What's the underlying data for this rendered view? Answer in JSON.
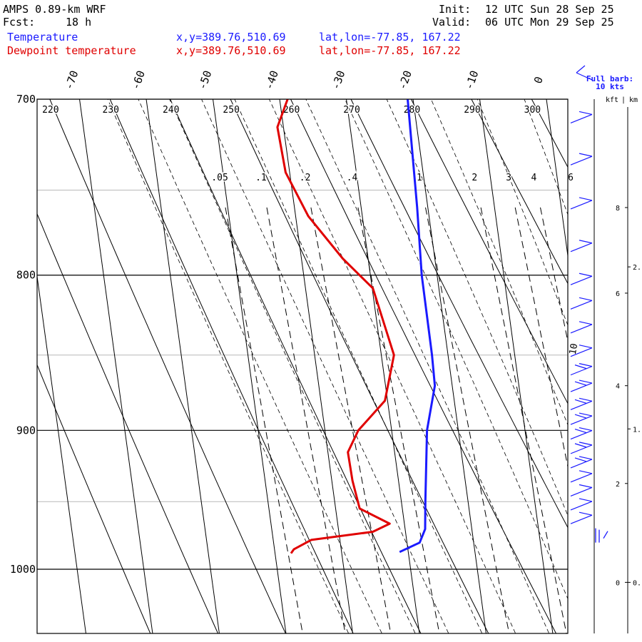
{
  "header": {
    "model": "AMPS 0.89-km WRF",
    "fcst_label": "Fcst:",
    "fcst_hours": "18 h",
    "init_label": "Init:",
    "init_time": "12 UTC Sun 28 Sep 25",
    "valid_label": "Valid:",
    "valid_time": "06 UTC Mon 29 Sep 25"
  },
  "legend": [
    {
      "name": "Temperature",
      "xy": "x,y=389.76,510.69",
      "latlon": "lat,lon=-77.85, 167.22",
      "color": "#1a1aff"
    },
    {
      "name": "Dewpoint temperature",
      "xy": "x,y=389.76,510.69",
      "latlon": "lat,lon=-77.85, 167.22",
      "color": "#e00000"
    }
  ],
  "barb_legend": {
    "line1": "Full barb:",
    "line2": "10 kts"
  },
  "height_axis": {
    "kft_label": "kft",
    "km_label": "km"
  },
  "chart_data": {
    "type": "line",
    "subtype": "skew-T log-p",
    "pressure_levels": [
      700,
      800,
      900,
      1000
    ],
    "p_range": [
      700,
      1040
    ],
    "skew_temp_labels": [
      "-70",
      "-60",
      "-50",
      "-40",
      "-30",
      "-20",
      "-10",
      "0"
    ],
    "theta_labels": [
      "220",
      "230",
      "240",
      "250",
      "260",
      "270",
      "280",
      "290",
      "300"
    ],
    "mixing_ratio_labels": [
      ".05",
      ".1",
      ".2",
      ".4",
      "1",
      "2",
      "3",
      "4",
      "6"
    ],
    "kft_ticks": [
      {
        "p": 760,
        "label": "8"
      },
      {
        "p": 811,
        "label": "6"
      },
      {
        "p": 870,
        "label": "4"
      },
      {
        "p": 937,
        "label": "2"
      },
      {
        "p": 1010,
        "label": "0"
      }
    ],
    "km_ticks": [
      {
        "p": 795,
        "label": "2."
      },
      {
        "p": 899,
        "label": "1."
      },
      {
        "p": 1010,
        "label": "0."
      }
    ],
    "extra_label": "10",
    "series": [
      {
        "name": "Temperature",
        "color": "#1a1aff",
        "points": [
          [
            700,
            -20.8
          ],
          [
            760,
            -21.6
          ],
          [
            800,
            -22.3
          ],
          [
            850,
            -22.4
          ],
          [
            870,
            -22.6
          ],
          [
            900,
            -24.7
          ],
          [
            950,
            -26.4
          ],
          [
            970,
            -27.0
          ],
          [
            980,
            -28.1
          ],
          [
            987,
            -31.3
          ]
        ]
      },
      {
        "name": "Dewpoint temperature",
        "color": "#e00000",
        "points": [
          [
            700,
            -38.8
          ],
          [
            715,
            -40.9
          ],
          [
            740,
            -40.6
          ],
          [
            765,
            -38.1
          ],
          [
            790,
            -33.8
          ],
          [
            808,
            -29.9
          ],
          [
            850,
            -28.1
          ],
          [
            880,
            -30.4
          ],
          [
            900,
            -35.0
          ],
          [
            915,
            -37.0
          ],
          [
            935,
            -36.9
          ],
          [
            955,
            -36.4
          ],
          [
            966,
            -32.2
          ],
          [
            972,
            -34.9
          ],
          [
            978,
            -44.3
          ],
          [
            985,
            -47.1
          ],
          [
            988,
            -47.6
          ]
        ]
      }
    ],
    "wind_barbs": [
      {
        "p": 712,
        "flags": 1
      },
      {
        "p": 735,
        "flags": 1
      },
      {
        "p": 760,
        "flags": 1
      },
      {
        "p": 785,
        "flags": 1
      },
      {
        "p": 805,
        "flags": 1
      },
      {
        "p": 820,
        "flags": 1
      },
      {
        "p": 835,
        "flags": 1
      },
      {
        "p": 850,
        "flags": 1
      },
      {
        "p": 862,
        "flags": 2
      },
      {
        "p": 873,
        "flags": 2
      },
      {
        "p": 885,
        "flags": 2
      },
      {
        "p": 895,
        "flags": 2
      },
      {
        "p": 905,
        "flags": 2
      },
      {
        "p": 915,
        "flags": 2
      },
      {
        "p": 925,
        "flags": 2
      },
      {
        "p": 935,
        "flags": 1
      },
      {
        "p": 945,
        "flags": 1
      },
      {
        "p": 955,
        "flags": 1
      },
      {
        "p": 965,
        "flags": 1
      },
      {
        "p": 980,
        "flags": 0
      }
    ]
  }
}
